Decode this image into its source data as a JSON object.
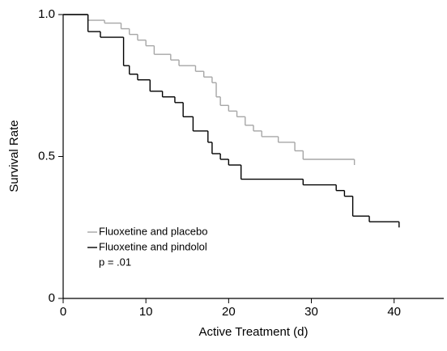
{
  "chart_data": {
    "type": "step",
    "x_label": "Active Treatment (d)",
    "y_label": "Survival Rate",
    "xlim": [
      0,
      46
    ],
    "xticks": [
      0,
      10,
      20,
      30,
      40
    ],
    "ylim": [
      0,
      1
    ],
    "yticks": [
      {
        "value": 0,
        "label": "0"
      },
      {
        "value": 0.5,
        "label": "0.5"
      },
      {
        "value": 1,
        "label": "1.0"
      }
    ],
    "legend": "lower-left",
    "annotation": "p = .01",
    "series": [
      {
        "name": "Fluoxetine and placebo",
        "color": "#a6a6a6",
        "x": [
          0,
          3,
          5,
          7,
          8,
          9,
          10,
          11,
          13,
          14,
          16,
          17,
          18,
          18.5,
          19,
          20,
          21,
          22,
          23,
          24,
          26,
          28,
          29,
          35.2
        ],
        "values": [
          1,
          0.98,
          0.97,
          0.95,
          0.93,
          0.91,
          0.89,
          0.86,
          0.84,
          0.82,
          0.8,
          0.78,
          0.76,
          0.71,
          0.68,
          0.66,
          0.64,
          0.61,
          0.59,
          0.57,
          0.55,
          0.52,
          0.49,
          0.47
        ]
      },
      {
        "name": "Fluoxetine and pindolol",
        "color": "#000000",
        "x": [
          0,
          3,
          4.5,
          7.3,
          8,
          9,
          10.5,
          12,
          13.5,
          14.5,
          15.7,
          17.5,
          18,
          19,
          20,
          21.5,
          29,
          33,
          34,
          35,
          37,
          40.6
        ],
        "values": [
          1,
          0.94,
          0.92,
          0.82,
          0.79,
          0.77,
          0.73,
          0.71,
          0.69,
          0.64,
          0.59,
          0.55,
          0.51,
          0.49,
          0.47,
          0.42,
          0.4,
          0.38,
          0.36,
          0.29,
          0.27,
          0.25
        ]
      }
    ]
  }
}
